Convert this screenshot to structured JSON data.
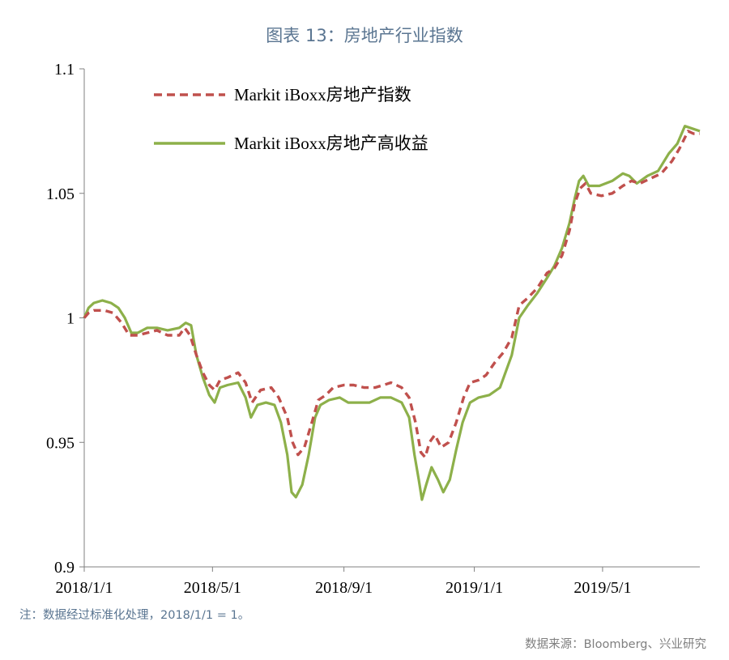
{
  "title": "图表 13：房地产行业指数",
  "note": "注：数据经过标准化处理，2018/1/1 = 1。",
  "source": "数据来源：Bloomberg、兴业研究",
  "chart_data": {
    "type": "line",
    "title": "图表 13：房地产行业指数",
    "xlabel": "",
    "ylabel": "",
    "ylim": [
      0.9,
      1.1
    ],
    "yticks": [
      0.9,
      0.95,
      1,
      1.05,
      1.1
    ],
    "ytick_labels": [
      "0.9",
      "0.95",
      "1",
      "1.05",
      "1.1"
    ],
    "xlim": [
      "2018-01-01",
      "2019-07-31"
    ],
    "xticks": [
      "2018-01-01",
      "2018-05-01",
      "2018-09-01",
      "2019-01-01",
      "2019-05-01"
    ],
    "xtick_labels": [
      "2018/1/1",
      "2018/5/1",
      "2018/9/1",
      "2019/1/1",
      "2019/5/1"
    ],
    "grid": false,
    "legend_position": "top-left",
    "series": [
      {
        "name": "Markit iBoxx房地产指数",
        "color": "#c0504d",
        "style": "dashed",
        "points": [
          [
            "2018-01-01",
            1.0
          ],
          [
            "2018-01-05",
            1.002
          ],
          [
            "2018-01-10",
            1.003
          ],
          [
            "2018-01-20",
            1.003
          ],
          [
            "2018-01-28",
            1.002
          ],
          [
            "2018-02-05",
            0.998
          ],
          [
            "2018-02-12",
            0.993
          ],
          [
            "2018-02-20",
            0.993
          ],
          [
            "2018-03-01",
            0.994
          ],
          [
            "2018-03-10",
            0.995
          ],
          [
            "2018-03-20",
            0.993
          ],
          [
            "2018-03-31",
            0.993
          ],
          [
            "2018-04-05",
            0.996
          ],
          [
            "2018-04-10",
            0.993
          ],
          [
            "2018-04-16",
            0.985
          ],
          [
            "2018-04-22",
            0.978
          ],
          [
            "2018-04-28",
            0.973
          ],
          [
            "2018-05-03",
            0.971
          ],
          [
            "2018-05-08",
            0.975
          ],
          [
            "2018-05-15",
            0.976
          ],
          [
            "2018-05-25",
            0.978
          ],
          [
            "2018-06-01",
            0.974
          ],
          [
            "2018-06-07",
            0.966
          ],
          [
            "2018-06-15",
            0.971
          ],
          [
            "2018-06-25",
            0.972
          ],
          [
            "2018-07-02",
            0.968
          ],
          [
            "2018-07-10",
            0.96
          ],
          [
            "2018-07-15",
            0.95
          ],
          [
            "2018-07-20",
            0.945
          ],
          [
            "2018-07-26",
            0.948
          ],
          [
            "2018-08-02",
            0.958
          ],
          [
            "2018-08-08",
            0.967
          ],
          [
            "2018-08-15",
            0.969
          ],
          [
            "2018-08-22",
            0.972
          ],
          [
            "2018-09-01",
            0.973
          ],
          [
            "2018-09-10",
            0.973
          ],
          [
            "2018-09-20",
            0.972
          ],
          [
            "2018-09-30",
            0.972
          ],
          [
            "2018-10-08",
            0.973
          ],
          [
            "2018-10-15",
            0.974
          ],
          [
            "2018-10-25",
            0.972
          ],
          [
            "2018-11-01",
            0.968
          ],
          [
            "2018-11-07",
            0.958
          ],
          [
            "2018-11-12",
            0.946
          ],
          [
            "2018-11-16",
            0.944
          ],
          [
            "2018-11-20",
            0.95
          ],
          [
            "2018-11-25",
            0.953
          ],
          [
            "2018-12-01",
            0.948
          ],
          [
            "2018-12-08",
            0.95
          ],
          [
            "2018-12-15",
            0.958
          ],
          [
            "2018-12-22",
            0.968
          ],
          [
            "2018-12-28",
            0.974
          ],
          [
            "2019-01-05",
            0.975
          ],
          [
            "2019-01-12",
            0.977
          ],
          [
            "2019-01-20",
            0.982
          ],
          [
            "2019-01-28",
            0.986
          ],
          [
            "2019-02-05",
            0.992
          ],
          [
            "2019-02-12",
            1.005
          ],
          [
            "2019-02-20",
            1.008
          ],
          [
            "2019-03-01",
            1.012
          ],
          [
            "2019-03-10",
            1.018
          ],
          [
            "2019-03-17",
            1.02
          ],
          [
            "2019-03-24",
            1.025
          ],
          [
            "2019-03-31",
            1.035
          ],
          [
            "2019-04-05",
            1.046
          ],
          [
            "2019-04-10",
            1.052
          ],
          [
            "2019-04-15",
            1.054
          ],
          [
            "2019-04-20",
            1.05
          ],
          [
            "2019-04-30",
            1.049
          ],
          [
            "2019-05-10",
            1.05
          ],
          [
            "2019-05-20",
            1.053
          ],
          [
            "2019-05-28",
            1.055
          ],
          [
            "2019-06-05",
            1.054
          ],
          [
            "2019-06-15",
            1.056
          ],
          [
            "2019-06-25",
            1.058
          ],
          [
            "2019-07-05",
            1.063
          ],
          [
            "2019-07-12",
            1.068
          ],
          [
            "2019-07-20",
            1.075
          ],
          [
            "2019-07-25",
            1.074
          ],
          [
            "2019-07-31",
            1.074
          ]
        ]
      },
      {
        "name": "Markit iBoxx房地产高收益",
        "color": "#8db04a",
        "style": "solid",
        "points": [
          [
            "2018-01-01",
            1.0
          ],
          [
            "2018-01-05",
            1.004
          ],
          [
            "2018-01-10",
            1.006
          ],
          [
            "2018-01-18",
            1.007
          ],
          [
            "2018-01-26",
            1.006
          ],
          [
            "2018-02-02",
            1.004
          ],
          [
            "2018-02-08",
            1.0
          ],
          [
            "2018-02-14",
            0.994
          ],
          [
            "2018-02-20",
            0.994
          ],
          [
            "2018-03-01",
            0.996
          ],
          [
            "2018-03-10",
            0.996
          ],
          [
            "2018-03-20",
            0.995
          ],
          [
            "2018-03-31",
            0.996
          ],
          [
            "2018-04-06",
            0.998
          ],
          [
            "2018-04-11",
            0.997
          ],
          [
            "2018-04-16",
            0.985
          ],
          [
            "2018-04-22",
            0.976
          ],
          [
            "2018-04-28",
            0.969
          ],
          [
            "2018-05-03",
            0.966
          ],
          [
            "2018-05-08",
            0.972
          ],
          [
            "2018-05-15",
            0.973
          ],
          [
            "2018-05-25",
            0.974
          ],
          [
            "2018-06-01",
            0.968
          ],
          [
            "2018-06-06",
            0.96
          ],
          [
            "2018-06-12",
            0.965
          ],
          [
            "2018-06-20",
            0.966
          ],
          [
            "2018-06-28",
            0.965
          ],
          [
            "2018-07-04",
            0.958
          ],
          [
            "2018-07-10",
            0.945
          ],
          [
            "2018-07-14",
            0.93
          ],
          [
            "2018-07-18",
            0.928
          ],
          [
            "2018-07-24",
            0.933
          ],
          [
            "2018-07-30",
            0.945
          ],
          [
            "2018-08-05",
            0.96
          ],
          [
            "2018-08-10",
            0.965
          ],
          [
            "2018-08-18",
            0.967
          ],
          [
            "2018-08-28",
            0.968
          ],
          [
            "2018-09-05",
            0.966
          ],
          [
            "2018-09-15",
            0.966
          ],
          [
            "2018-09-25",
            0.966
          ],
          [
            "2018-10-05",
            0.968
          ],
          [
            "2018-10-15",
            0.968
          ],
          [
            "2018-10-25",
            0.966
          ],
          [
            "2018-11-01",
            0.96
          ],
          [
            "2018-11-06",
            0.945
          ],
          [
            "2018-11-10",
            0.935
          ],
          [
            "2018-11-13",
            0.927
          ],
          [
            "2018-11-17",
            0.933
          ],
          [
            "2018-11-22",
            0.94
          ],
          [
            "2018-11-28",
            0.935
          ],
          [
            "2018-12-03",
            0.93
          ],
          [
            "2018-12-09",
            0.935
          ],
          [
            "2018-12-15",
            0.947
          ],
          [
            "2018-12-21",
            0.958
          ],
          [
            "2018-12-28",
            0.966
          ],
          [
            "2019-01-05",
            0.968
          ],
          [
            "2019-01-15",
            0.969
          ],
          [
            "2019-01-25",
            0.972
          ],
          [
            "2019-02-05",
            0.985
          ],
          [
            "2019-02-12",
            1.0
          ],
          [
            "2019-02-20",
            1.005
          ],
          [
            "2019-03-01",
            1.01
          ],
          [
            "2019-03-10",
            1.016
          ],
          [
            "2019-03-17",
            1.021
          ],
          [
            "2019-03-24",
            1.028
          ],
          [
            "2019-03-31",
            1.038
          ],
          [
            "2019-04-05",
            1.048
          ],
          [
            "2019-04-09",
            1.055
          ],
          [
            "2019-04-13",
            1.057
          ],
          [
            "2019-04-18",
            1.053
          ],
          [
            "2019-04-28",
            1.053
          ],
          [
            "2019-05-10",
            1.055
          ],
          [
            "2019-05-20",
            1.058
          ],
          [
            "2019-05-26",
            1.057
          ],
          [
            "2019-06-02",
            1.054
          ],
          [
            "2019-06-12",
            1.057
          ],
          [
            "2019-06-22",
            1.059
          ],
          [
            "2019-07-02",
            1.066
          ],
          [
            "2019-07-10",
            1.07
          ],
          [
            "2019-07-17",
            1.077
          ],
          [
            "2019-07-24",
            1.076
          ],
          [
            "2019-07-31",
            1.075
          ]
        ]
      }
    ]
  }
}
